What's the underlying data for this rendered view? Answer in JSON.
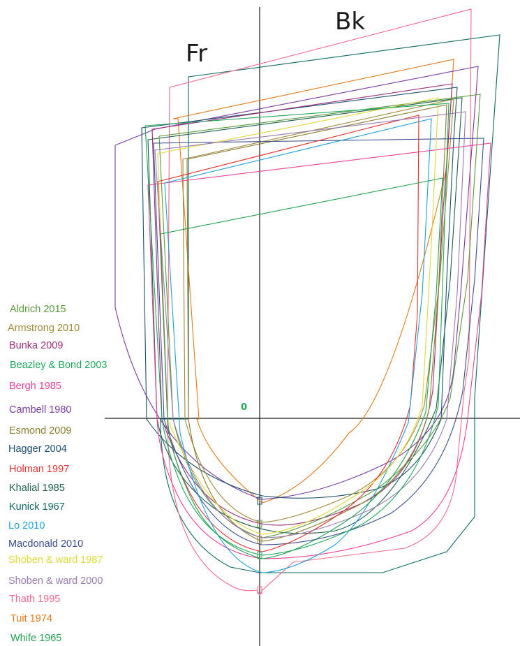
{
  "axes": {
    "left_label": "Fr",
    "right_label": "Bk",
    "origin_label": "0"
  },
  "colors": {
    "axis": "#1a1a1a",
    "origin": "#1fa85a"
  },
  "legend": [
    {
      "label": "Aldrich 2015",
      "color": "#5a9a3c"
    },
    {
      "label": "Armstrong 2010",
      "color": "#9c8a3a"
    },
    {
      "label": "Bunka 2009",
      "color": "#9a2f7a"
    },
    {
      "label": "Beazley & Bond 2003",
      "color": "#1fa85a"
    },
    {
      "label": "Bergh 1985",
      "color": "#e8409a"
    },
    {
      "label": "Cambell 1980",
      "color": "#7a3aa0"
    },
    {
      "label": "Esmond 2009",
      "color": "#8a7a30"
    },
    {
      "label": "Hagger 2004",
      "color": "#1d4f6e"
    },
    {
      "label": "Holman 1997",
      "color": "#e23030"
    },
    {
      "label": "Khalial 1985",
      "color": "#1e5e4e"
    },
    {
      "label": "Kunick 1967",
      "color": "#0e6a62"
    },
    {
      "label": "Lo 2010",
      "color": "#1fa0d8"
    },
    {
      "label": "Macdonald 2010",
      "color": "#3a4d8c"
    },
    {
      "label": "Shoben & ward 1987",
      "color": "#e0d83a"
    },
    {
      "label": "Shoben & ward 2000",
      "color": "#9a7ab0"
    },
    {
      "label": "Thath 1995",
      "color": "#f06a8a"
    },
    {
      "label": "Tuit 1974",
      "color": "#e07a1a"
    },
    {
      "label": "Whife 1965",
      "color": "#24a050"
    }
  ]
}
